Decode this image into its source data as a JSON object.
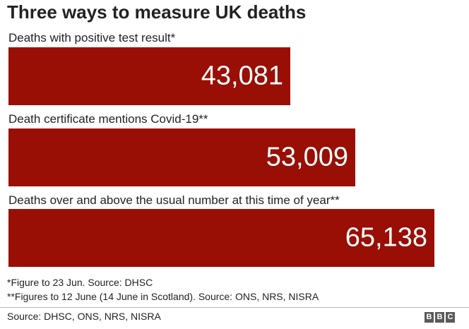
{
  "chart_data": {
    "type": "bar",
    "orientation": "horizontal",
    "title": "Three ways to measure UK deaths",
    "categories": [
      "Deaths with positive test result*",
      "Death certificate mentions Covid-19**",
      "Deaths over and above the usual number at this time of year**"
    ],
    "values": [
      43081,
      53009,
      65138
    ],
    "value_labels": [
      "43,081",
      "53,009",
      "65,138"
    ],
    "xlim": [
      0,
      70000
    ],
    "grid": false,
    "bar_color": "#990f05"
  },
  "notes": [
    "*Figure to 23 Jun. Source: DHSC",
    "**Figures to 12 June (14 June in Scotland). Source: ONS, NRS, NISRA"
  ],
  "source": "Source: DHSC, ONS, NRS, NISRA",
  "logo": {
    "letters": [
      "B",
      "B",
      "C"
    ]
  }
}
